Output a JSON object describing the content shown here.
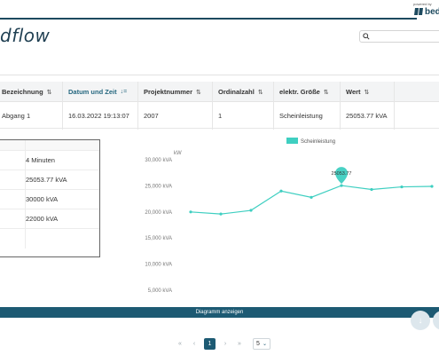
{
  "header": {
    "powered_by": "powered by",
    "brand_name": "bed",
    "logo_text": "dflow",
    "search_placeholder": "",
    "accent": "#1d4a5f"
  },
  "table": {
    "columns": [
      {
        "label": "Bezeichnung",
        "sort": "⇅",
        "active": false
      },
      {
        "label": "Datum und Zeit",
        "sort": "↓=",
        "active": true
      },
      {
        "label": "Projektnummer",
        "sort": "⇅",
        "active": false
      },
      {
        "label": "Ordinalzahl",
        "sort": "⇅",
        "active": false
      },
      {
        "label": "elektr. Größe",
        "sort": "⇅",
        "active": false
      },
      {
        "label": "Wert",
        "sort": "⇅",
        "active": false
      }
    ],
    "rows": [
      [
        "Abgang 1",
        "16.03.2022 19:13:07",
        "2007",
        "1",
        "Scheinleistung",
        "25053.77 kVA"
      ]
    ]
  },
  "details": {
    "rows": [
      {
        "value": ""
      },
      {
        "value": "4 Minuten"
      },
      {
        "value": "25053.77 kVA"
      },
      {
        "value": "30000 kVA"
      },
      {
        "value": "22000 kVA"
      },
      {
        "value": ""
      }
    ]
  },
  "chart_data": {
    "type": "line",
    "title": "",
    "ylabel": "kW",
    "xlabel": "",
    "legend": {
      "entries": [
        "Scheinleistung"
      ],
      "placement": "top"
    },
    "ylim": [
      5000,
      30000
    ],
    "yticks": [
      "5,000 kVA",
      "10,000 kVA",
      "15,000 kVA",
      "20,000 kVA",
      "25,000 kVA",
      "30,000 kVA"
    ],
    "ytick_values": [
      5000,
      10000,
      15000,
      20000,
      25000,
      30000
    ],
    "grid": false,
    "series": [
      {
        "name": "Scheinleistung",
        "color": "#3fcfc1",
        "x": [
          1,
          2,
          3,
          4,
          5,
          6,
          7,
          8,
          9
        ],
        "values": [
          20000,
          19600,
          20300,
          24000,
          22800,
          25053.77,
          24300,
          24800,
          24900
        ]
      }
    ],
    "tooltip": {
      "index": 5,
      "label": "25053.77"
    }
  },
  "actions": {
    "show_chart_label": "Diagramm anzeigen"
  },
  "pagination": {
    "first": "«",
    "prev": "‹",
    "current": "1",
    "next": "›",
    "last": "»",
    "page_size": "5"
  }
}
